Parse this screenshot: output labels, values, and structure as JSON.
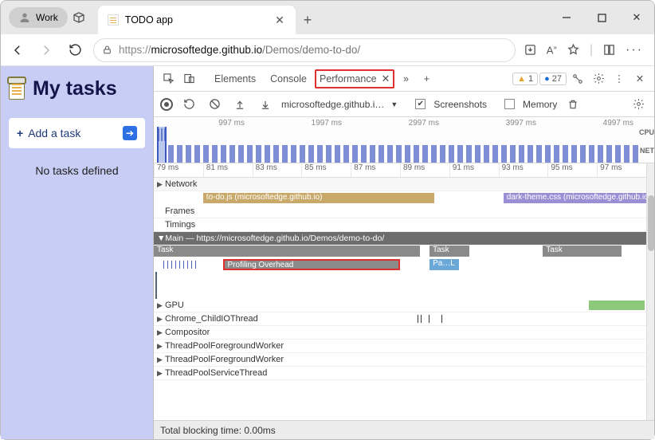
{
  "titlebar": {
    "profile_label": "Work",
    "tab_title": "TODO app"
  },
  "address": {
    "scheme": "https://",
    "host": "microsoftedge.github.io",
    "path": "/Demos/demo-to-do/"
  },
  "page": {
    "heading": "My tasks",
    "add_label": "Add a task",
    "empty_msg": "No tasks defined"
  },
  "devtools": {
    "tabs": {
      "elements": "Elements",
      "console": "Console",
      "performance": "Performance"
    },
    "warn_count": "1",
    "info_count": "27",
    "toolbar": {
      "crumb": "microsoftedge.github.i…",
      "screenshots": "Screenshots",
      "memory": "Memory"
    },
    "overview_times": [
      "997 ms",
      "1997 ms",
      "2997 ms",
      "3997 ms",
      "4997 ms"
    ],
    "overview_labels": {
      "cpu": "CPU",
      "net": "NET"
    },
    "ruler": [
      "79 ms",
      "81 ms",
      "83 ms",
      "85 ms",
      "87 ms",
      "89 ms",
      "91 ms",
      "93 ms",
      "95 ms",
      "97 ms"
    ],
    "rows": {
      "network": "Network",
      "frames": "Frames",
      "timings": "Timings",
      "main": "Main — https://microsoftedge.github.io/Demos/demo-to-do/",
      "gpu": "GPU",
      "child_io": "Chrome_ChildIOThread",
      "compositor": "Compositor",
      "tpfw1": "ThreadPoolForegroundWorker",
      "tpfw2": "ThreadPoolForegroundWorker",
      "tpst": "ThreadPoolServiceThread"
    },
    "network_segments": {
      "todo": {
        "label": "to-do.js (microsoftedge.github.io)",
        "color": "#c9a96a",
        "left_pct": 10,
        "width_pct": 47
      },
      "dark": {
        "label": "dark-theme.css (microsoftedge.github.io)",
        "color": "#9a8fd4",
        "left_pct": 71,
        "width_pct": 29
      }
    },
    "main_bars": {
      "task1": {
        "label": "Task",
        "left_pct": 0,
        "width_pct": 54
      },
      "task2": {
        "label": "Task",
        "left_pct": 56,
        "width_pct": 8
      },
      "task3": {
        "label": "Task",
        "left_pct": 79,
        "width_pct": 16
      },
      "profiling": {
        "label": "Profiling Overhead",
        "left_pct": 14,
        "width_pct": 36
      },
      "pal": {
        "label": "Pa…L",
        "left_pct": 56,
        "width_pct": 6
      }
    },
    "status": "Total blocking time: 0.00ms"
  }
}
